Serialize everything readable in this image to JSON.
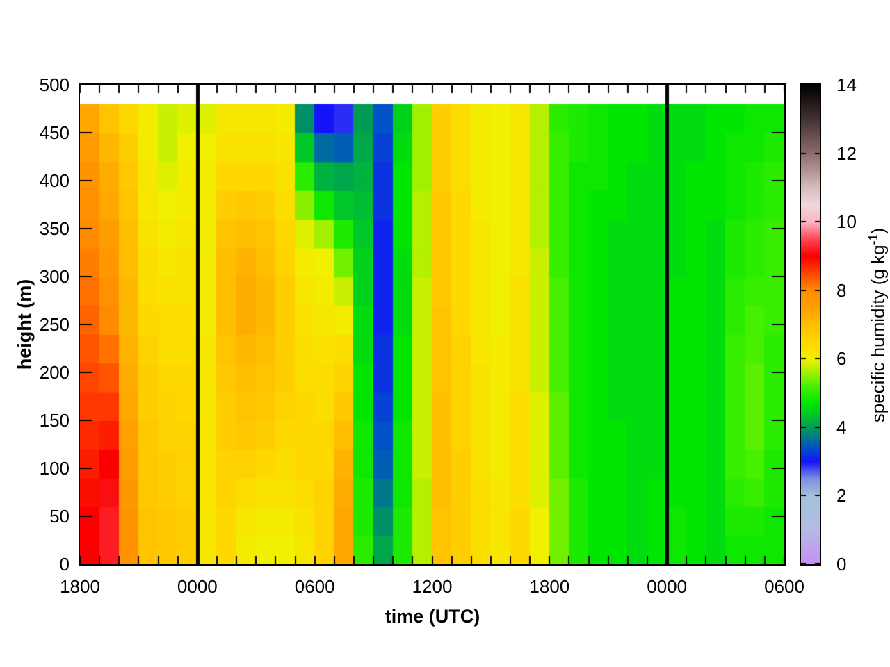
{
  "chart_data": {
    "type": "heatmap",
    "xlabel": "time (UTC)",
    "ylabel": "height (m)",
    "colorbar_label_pre": "specific humidity (g kg",
    "colorbar_label_sup": "-1",
    "colorbar_label_post": ")",
    "x_axis": {
      "total_hours": 36,
      "major_tick_interval_hours": 6,
      "minor_tick_interval_hours": 1,
      "tick_labels": [
        "1800",
        "0000",
        "0600",
        "1200",
        "1800",
        "0000",
        "0600"
      ],
      "tick_hour_offsets": [
        0,
        6,
        12,
        18,
        24,
        30,
        36
      ]
    },
    "y_axis": {
      "min": 0,
      "max": 500,
      "tick_step": 50,
      "tick_labels": [
        "0",
        "50",
        "100",
        "150",
        "200",
        "250",
        "300",
        "350",
        "400",
        "450",
        "500"
      ],
      "data_top_m": 480
    },
    "colorbar": {
      "min": 0,
      "max": 14,
      "tick_step": 2,
      "tick_labels": [
        "0",
        "2",
        "4",
        "6",
        "8",
        "10",
        "12",
        "14"
      ],
      "palette_stops": [
        [
          0,
          "#c88ef5"
        ],
        [
          1,
          "#b4bbe4"
        ],
        [
          2,
          "#a2c2dc"
        ],
        [
          2.5,
          "#7e90e2"
        ],
        [
          3,
          "#1414fa"
        ],
        [
          3.4,
          "#0050c8"
        ],
        [
          3.7,
          "#00788c"
        ],
        [
          4,
          "#009c55"
        ],
        [
          4.4,
          "#00c828"
        ],
        [
          4.7,
          "#00e600"
        ],
        [
          5.2,
          "#46f000"
        ],
        [
          5.6,
          "#a0f000"
        ],
        [
          6,
          "#f0f000"
        ],
        [
          6.5,
          "#ffd800"
        ],
        [
          7,
          "#ffbe00"
        ],
        [
          7.5,
          "#ffa000"
        ],
        [
          8,
          "#ff8c00"
        ],
        [
          8.5,
          "#ff4600"
        ],
        [
          9,
          "#fa0000"
        ],
        [
          9.5,
          "#ff4655"
        ],
        [
          10,
          "#ffb4c3"
        ],
        [
          10.5,
          "#eed9dc"
        ],
        [
          11,
          "#d7bcbc"
        ],
        [
          12,
          "#8c6e6e"
        ],
        [
          13,
          "#443232"
        ],
        [
          14,
          "#000000"
        ]
      ]
    },
    "event_lines_hour_offsets": [
      6,
      30
    ],
    "event_line_color": "#000000",
    "grid": {
      "orientation": "values[time_column][height_row]; height_row 0 = 0-30 m layer, 16 rows of 30 m up to 480 m; 36 hourly columns starting 1800 UTC",
      "column_start_times": [
        "1800",
        "1900",
        "2000",
        "2100",
        "2200",
        "2300",
        "0000",
        "0100",
        "0200",
        "0300",
        "0400",
        "0500",
        "0600",
        "0700",
        "0800",
        "0900",
        "1000",
        "1100",
        "1200",
        "1300",
        "1400",
        "1500",
        "1600",
        "1700",
        "1800",
        "1900",
        "2000",
        "2100",
        "2200",
        "2300",
        "0000",
        "0100",
        "0200",
        "0300",
        "0400",
        "0500"
      ],
      "height_layers_m": [
        0,
        30,
        60,
        90,
        120,
        150,
        180,
        210,
        240,
        270,
        300,
        330,
        360,
        390,
        420,
        450
      ],
      "values": [
        [
          9.0,
          9.0,
          8.9,
          8.8,
          8.7,
          8.6,
          8.5,
          8.4,
          8.3,
          8.2,
          8.1,
          8.0,
          7.9,
          7.8,
          7.6,
          7.4
        ],
        [
          9.2,
          9.2,
          9.1,
          9.0,
          8.8,
          8.6,
          8.4,
          8.2,
          8.0,
          7.9,
          7.7,
          7.6,
          7.4,
          7.3,
          7.1,
          6.9
        ],
        [
          7.9,
          7.8,
          7.7,
          7.6,
          7.5,
          7.4,
          7.3,
          7.2,
          7.1,
          7.1,
          7.0,
          7.0,
          6.9,
          6.8,
          6.7,
          6.5
        ],
        [
          6.9,
          6.9,
          6.8,
          6.8,
          6.8,
          6.7,
          6.7,
          6.6,
          6.5,
          6.4,
          6.4,
          6.3,
          6.2,
          6.2,
          6.1,
          6.1
        ],
        [
          6.8,
          6.8,
          6.7,
          6.7,
          6.6,
          6.6,
          6.5,
          6.4,
          6.4,
          6.3,
          6.2,
          6.1,
          6.0,
          5.9,
          5.8,
          5.8
        ],
        [
          6.7,
          6.7,
          6.6,
          6.6,
          6.6,
          6.5,
          6.5,
          6.4,
          6.4,
          6.3,
          6.3,
          6.2,
          6.1,
          6.1,
          6.0,
          5.9
        ],
        [
          6.2,
          6.2,
          6.2,
          6.2,
          6.2,
          6.2,
          6.2,
          6.2,
          6.1,
          6.1,
          6.1,
          6.1,
          6.1,
          6.1,
          6.0,
          5.9
        ],
        [
          6.5,
          6.5,
          6.6,
          6.6,
          6.7,
          6.7,
          6.8,
          6.9,
          7.0,
          7.0,
          7.0,
          6.9,
          6.7,
          6.5,
          6.3,
          6.2
        ],
        [
          6.1,
          6.2,
          6.4,
          6.6,
          6.8,
          6.9,
          7.0,
          7.1,
          7.3,
          7.3,
          7.2,
          7.0,
          6.8,
          6.5,
          6.3,
          6.2
        ],
        [
          6.0,
          6.1,
          6.3,
          6.5,
          6.7,
          6.8,
          6.9,
          7.0,
          7.1,
          7.1,
          7.0,
          6.9,
          6.7,
          6.5,
          6.3,
          6.2
        ],
        [
          6.0,
          6.1,
          6.3,
          6.4,
          6.5,
          6.6,
          6.7,
          6.7,
          6.7,
          6.7,
          6.6,
          6.5,
          6.4,
          6.3,
          6.2,
          6.1
        ],
        [
          6.2,
          6.3,
          6.4,
          6.5,
          6.5,
          6.5,
          6.4,
          6.4,
          6.3,
          6.2,
          6.1,
          5.9,
          5.5,
          5.0,
          4.4,
          3.9
        ],
        [
          6.6,
          6.6,
          6.6,
          6.5,
          6.5,
          6.4,
          6.4,
          6.3,
          6.2,
          6.1,
          6.0,
          5.6,
          4.8,
          4.2,
          3.6,
          3.0
        ],
        [
          7.4,
          7.4,
          7.3,
          7.2,
          7.0,
          6.8,
          6.6,
          6.4,
          6.1,
          5.8,
          5.4,
          4.9,
          4.4,
          4.1,
          3.5,
          2.9
        ],
        [
          5.0,
          4.9,
          4.9,
          4.8,
          4.8,
          4.7,
          4.7,
          4.6,
          4.6,
          4.5,
          4.5,
          4.4,
          4.3,
          4.2,
          4.1,
          4.0
        ],
        [
          4.1,
          3.9,
          3.7,
          3.5,
          3.4,
          3.3,
          3.2,
          3.2,
          3.1,
          3.1,
          3.1,
          3.1,
          3.2,
          3.2,
          3.3,
          3.4
        ],
        [
          4.9,
          4.9,
          4.8,
          4.8,
          4.8,
          4.7,
          4.7,
          4.7,
          4.6,
          4.6,
          4.6,
          4.7,
          4.7,
          4.7,
          4.6,
          4.5
        ],
        [
          5.7,
          5.7,
          5.7,
          5.8,
          5.8,
          5.8,
          5.8,
          5.8,
          5.8,
          5.8,
          5.7,
          5.7,
          5.7,
          5.6,
          5.6,
          5.6
        ],
        [
          6.9,
          6.9,
          7.0,
          7.0,
          7.0,
          7.0,
          6.9,
          6.9,
          6.9,
          6.8,
          6.8,
          6.8,
          6.8,
          6.7,
          6.7,
          6.7
        ],
        [
          6.7,
          6.7,
          6.7,
          6.7,
          6.6,
          6.6,
          6.6,
          6.6,
          6.5,
          6.5,
          6.5,
          6.5,
          6.5,
          6.4,
          6.4,
          6.4
        ],
        [
          6.4,
          6.4,
          6.4,
          6.3,
          6.3,
          6.3,
          6.3,
          6.2,
          6.2,
          6.2,
          6.2,
          6.2,
          6.1,
          6.1,
          6.1,
          6.1
        ],
        [
          6.2,
          6.2,
          6.2,
          6.1,
          6.1,
          6.1,
          6.1,
          6.1,
          6.0,
          6.0,
          6.0,
          6.0,
          6.0,
          6.0,
          6.0,
          6.0
        ],
        [
          6.5,
          6.5,
          6.4,
          6.4,
          6.4,
          6.4,
          6.3,
          6.3,
          6.3,
          6.3,
          6.2,
          6.2,
          6.2,
          6.2,
          6.2,
          6.2
        ],
        [
          6.0,
          6.0,
          5.9,
          5.9,
          5.9,
          5.9,
          5.8,
          5.8,
          5.8,
          5.8,
          5.8,
          5.7,
          5.7,
          5.7,
          5.7,
          5.7
        ],
        [
          5.4,
          5.4,
          5.4,
          5.3,
          5.3,
          5.3,
          5.2,
          5.2,
          5.2,
          5.2,
          5.1,
          5.1,
          5.1,
          5.1,
          5.1,
          5.0
        ],
        [
          4.9,
          4.9,
          4.9,
          4.8,
          4.8,
          4.8,
          4.8,
          4.8,
          4.8,
          4.8,
          4.8,
          4.8,
          4.8,
          4.8,
          4.9,
          4.9
        ],
        [
          4.7,
          4.7,
          4.7,
          4.7,
          4.7,
          4.7,
          4.7,
          4.7,
          4.7,
          4.7,
          4.7,
          4.7,
          4.7,
          4.8,
          4.8,
          4.8
        ],
        [
          4.7,
          4.7,
          4.7,
          4.7,
          4.7,
          4.6,
          4.6,
          4.6,
          4.6,
          4.6,
          4.6,
          4.6,
          4.7,
          4.7,
          4.7,
          4.7
        ],
        [
          4.6,
          4.6,
          4.6,
          4.6,
          4.6,
          4.6,
          4.6,
          4.6,
          4.6,
          4.6,
          4.6,
          4.6,
          4.6,
          4.6,
          4.7,
          4.7
        ],
        [
          4.7,
          4.7,
          4.7,
          4.6,
          4.6,
          4.6,
          4.6,
          4.6,
          4.6,
          4.6,
          4.6,
          4.6,
          4.6,
          4.6,
          4.6,
          4.6
        ],
        [
          4.8,
          4.8,
          4.7,
          4.7,
          4.7,
          4.7,
          4.7,
          4.7,
          4.7,
          4.7,
          4.6,
          4.6,
          4.6,
          4.6,
          4.6,
          4.6
        ],
        [
          4.7,
          4.7,
          4.7,
          4.7,
          4.7,
          4.7,
          4.7,
          4.7,
          4.7,
          4.7,
          4.7,
          4.7,
          4.7,
          4.7,
          4.6,
          4.6
        ],
        [
          4.6,
          4.6,
          4.6,
          4.6,
          4.6,
          4.6,
          4.6,
          4.6,
          4.6,
          4.6,
          4.6,
          4.6,
          4.7,
          4.7,
          4.7,
          4.7
        ],
        [
          4.8,
          4.9,
          5.0,
          5.1,
          5.1,
          5.1,
          5.1,
          5.1,
          5.0,
          5.0,
          4.9,
          4.9,
          4.8,
          4.8,
          4.8,
          4.7
        ],
        [
          4.8,
          4.9,
          5.1,
          5.2,
          5.3,
          5.3,
          5.3,
          5.2,
          5.2,
          5.1,
          5.0,
          5.0,
          4.9,
          4.9,
          4.8,
          4.8
        ],
        [
          4.8,
          4.8,
          4.9,
          4.9,
          5.0,
          5.0,
          5.0,
          5.0,
          5.1,
          5.1,
          5.1,
          5.1,
          5.0,
          5.0,
          4.9,
          4.8
        ]
      ]
    }
  }
}
